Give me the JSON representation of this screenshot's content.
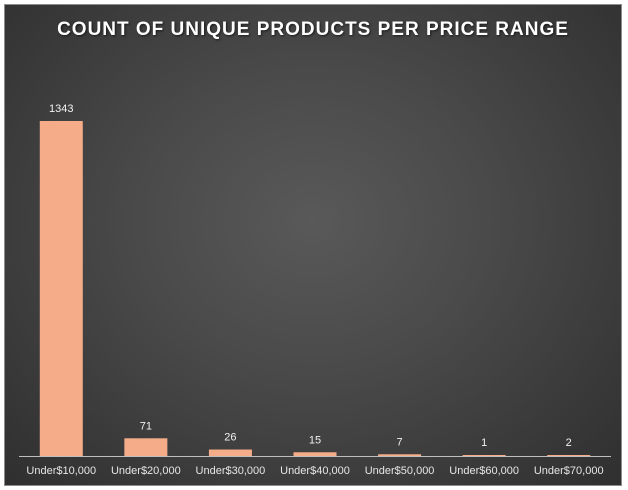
{
  "chart_data": {
    "type": "bar",
    "title": "COUNT OF UNIQUE PRODUCTS PER PRICE RANGE",
    "categories": [
      "Under$10,000",
      "Under$20,000",
      "Under$30,000",
      "Under$40,000",
      "Under$50,000",
      "Under$60,000",
      "Under$70,000"
    ],
    "values": [
      1343,
      71,
      26,
      15,
      7,
      1,
      2
    ],
    "data_labels": [
      "1343",
      "71",
      "26",
      "15",
      "7",
      "1",
      "2"
    ],
    "ylim": [
      0,
      1343
    ],
    "grid": false,
    "legend": "none",
    "colors": {
      "bar": "#f4ac89",
      "axis": "#bfbfbf"
    }
  }
}
